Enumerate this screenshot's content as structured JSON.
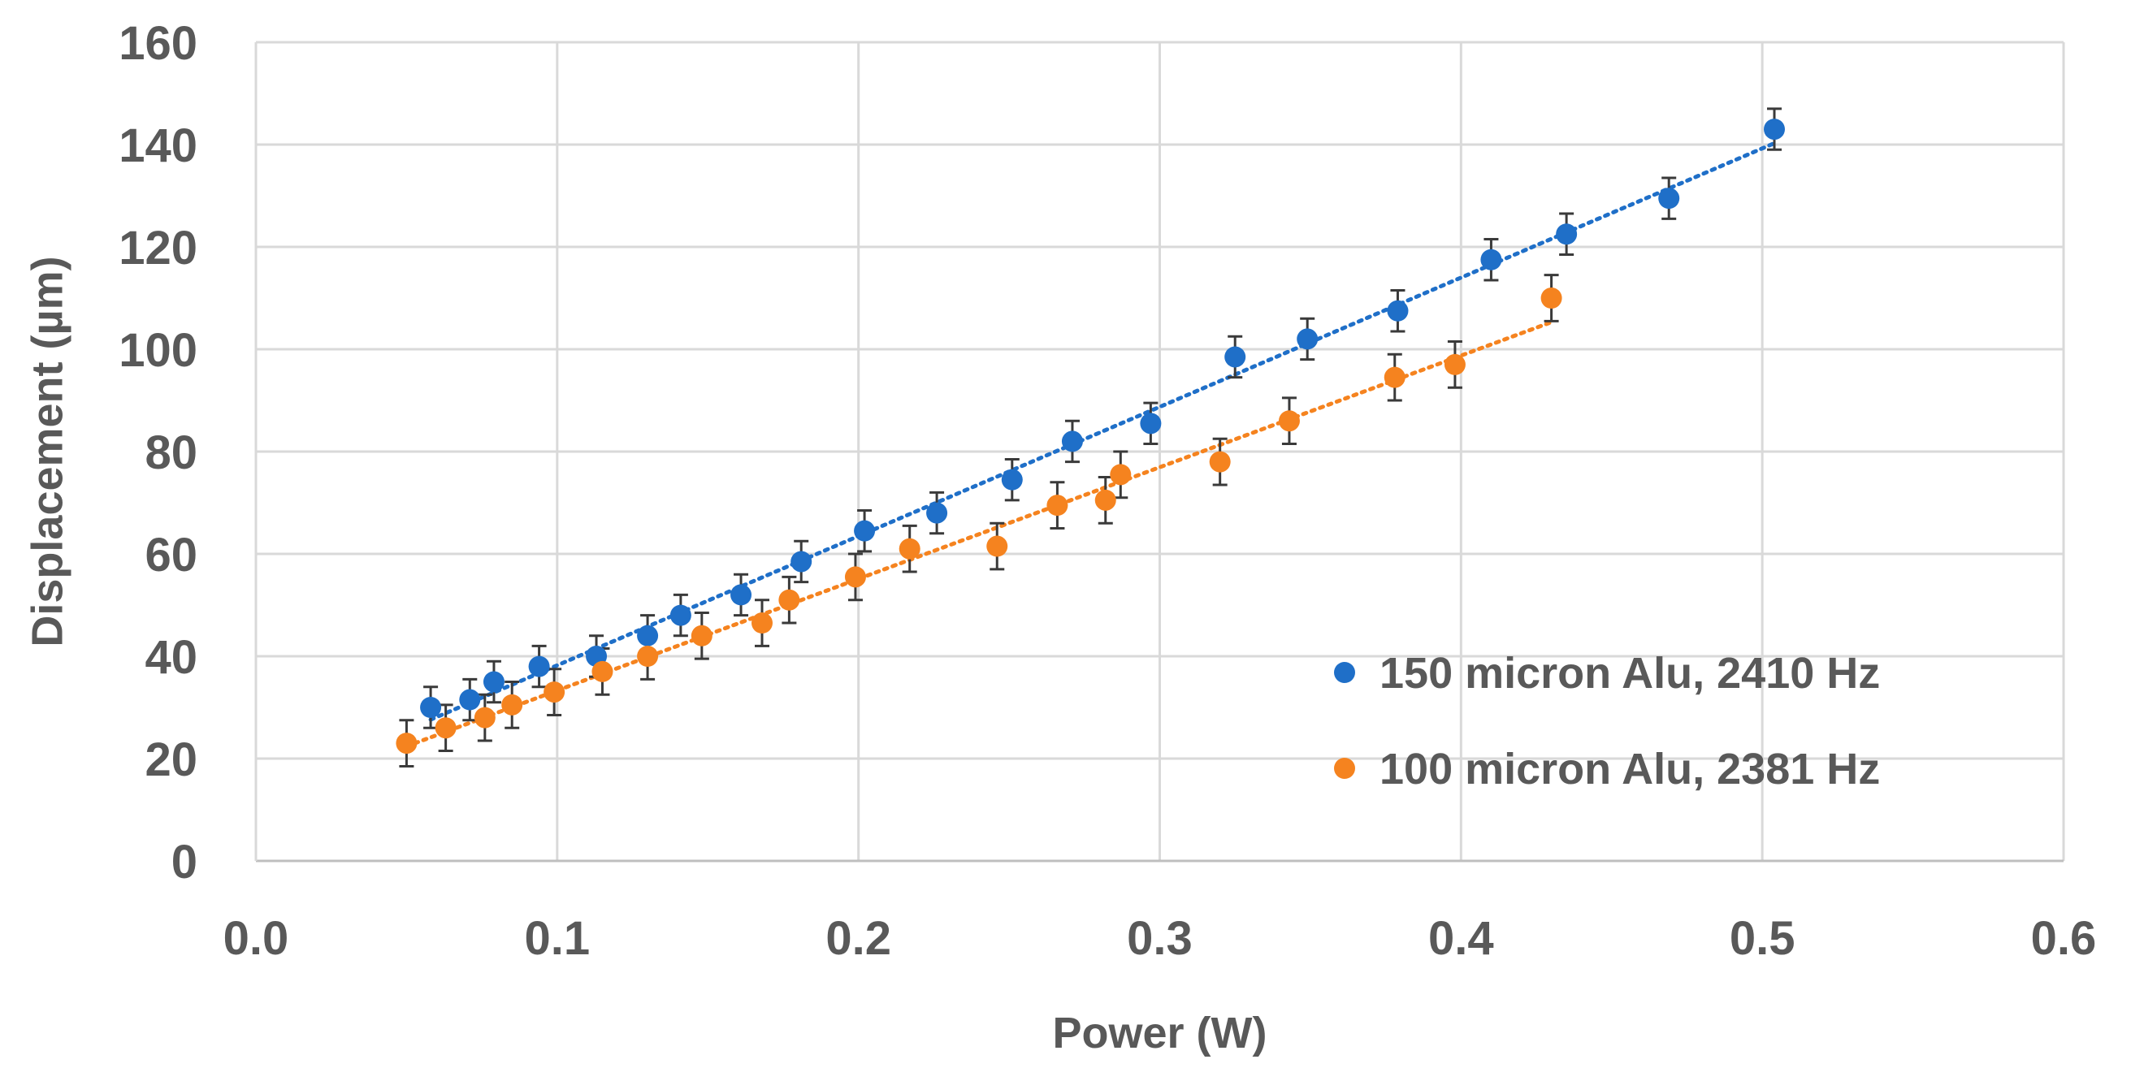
{
  "chart_data": {
    "type": "scatter",
    "title": "",
    "xlabel": "Power (W)",
    "ylabel": "Displacement (µm)",
    "xlim": [
      0,
      0.6
    ],
    "ylim": [
      0,
      160
    ],
    "xticks": [
      "0.0",
      "0.1",
      "0.2",
      "0.3",
      "0.4",
      "0.5",
      "0.6"
    ],
    "yticks": [
      "0",
      "20",
      "40",
      "60",
      "80",
      "100",
      "120",
      "140",
      "160"
    ],
    "grid": true,
    "legend_position": "bottom-right",
    "series": [
      {
        "name": "150 micron Alu, 2410 Hz",
        "color": "#1f6fc8",
        "trendline": true,
        "points": [
          {
            "x": 0.058,
            "y": 30,
            "err": 4
          },
          {
            "x": 0.071,
            "y": 31.5,
            "err": 4
          },
          {
            "x": 0.079,
            "y": 35,
            "err": 4
          },
          {
            "x": 0.094,
            "y": 38,
            "err": 4
          },
          {
            "x": 0.113,
            "y": 40,
            "err": 4
          },
          {
            "x": 0.13,
            "y": 44,
            "err": 4
          },
          {
            "x": 0.141,
            "y": 48,
            "err": 4
          },
          {
            "x": 0.161,
            "y": 52,
            "err": 4
          },
          {
            "x": 0.181,
            "y": 58.5,
            "err": 4
          },
          {
            "x": 0.202,
            "y": 64.5,
            "err": 4
          },
          {
            "x": 0.226,
            "y": 68,
            "err": 4
          },
          {
            "x": 0.251,
            "y": 74.5,
            "err": 4
          },
          {
            "x": 0.271,
            "y": 82,
            "err": 4
          },
          {
            "x": 0.297,
            "y": 85.5,
            "err": 4
          },
          {
            "x": 0.325,
            "y": 98.5,
            "err": 4
          },
          {
            "x": 0.349,
            "y": 102,
            "err": 4
          },
          {
            "x": 0.379,
            "y": 107.5,
            "err": 4
          },
          {
            "x": 0.41,
            "y": 117.5,
            "err": 4
          },
          {
            "x": 0.435,
            "y": 122.5,
            "err": 4
          },
          {
            "x": 0.469,
            "y": 129.5,
            "err": 4
          },
          {
            "x": 0.504,
            "y": 143,
            "err": 4
          }
        ]
      },
      {
        "name": "100 micron Alu, 2381 Hz",
        "color": "#f5831f",
        "trendline": true,
        "points": [
          {
            "x": 0.05,
            "y": 23,
            "err": 4.5
          },
          {
            "x": 0.063,
            "y": 26,
            "err": 4.5
          },
          {
            "x": 0.076,
            "y": 28,
            "err": 4.5
          },
          {
            "x": 0.085,
            "y": 30.5,
            "err": 4.5
          },
          {
            "x": 0.099,
            "y": 33,
            "err": 4.5
          },
          {
            "x": 0.115,
            "y": 37,
            "err": 4.5
          },
          {
            "x": 0.13,
            "y": 40,
            "err": 4.5
          },
          {
            "x": 0.148,
            "y": 44,
            "err": 4.5
          },
          {
            "x": 0.168,
            "y": 46.5,
            "err": 4.5
          },
          {
            "x": 0.177,
            "y": 51,
            "err": 4.5
          },
          {
            "x": 0.199,
            "y": 55.5,
            "err": 4.5
          },
          {
            "x": 0.217,
            "y": 61,
            "err": 4.5
          },
          {
            "x": 0.246,
            "y": 61.5,
            "err": 4.5
          },
          {
            "x": 0.266,
            "y": 69.5,
            "err": 4.5
          },
          {
            "x": 0.282,
            "y": 70.5,
            "err": 4.5
          },
          {
            "x": 0.287,
            "y": 75.5,
            "err": 4.5
          },
          {
            "x": 0.32,
            "y": 78,
            "err": 4.5
          },
          {
            "x": 0.343,
            "y": 86,
            "err": 4.5
          },
          {
            "x": 0.378,
            "y": 94.5,
            "err": 4.5
          },
          {
            "x": 0.398,
            "y": 97,
            "err": 4.5
          },
          {
            "x": 0.43,
            "y": 110,
            "err": 4.5
          }
        ]
      }
    ]
  }
}
